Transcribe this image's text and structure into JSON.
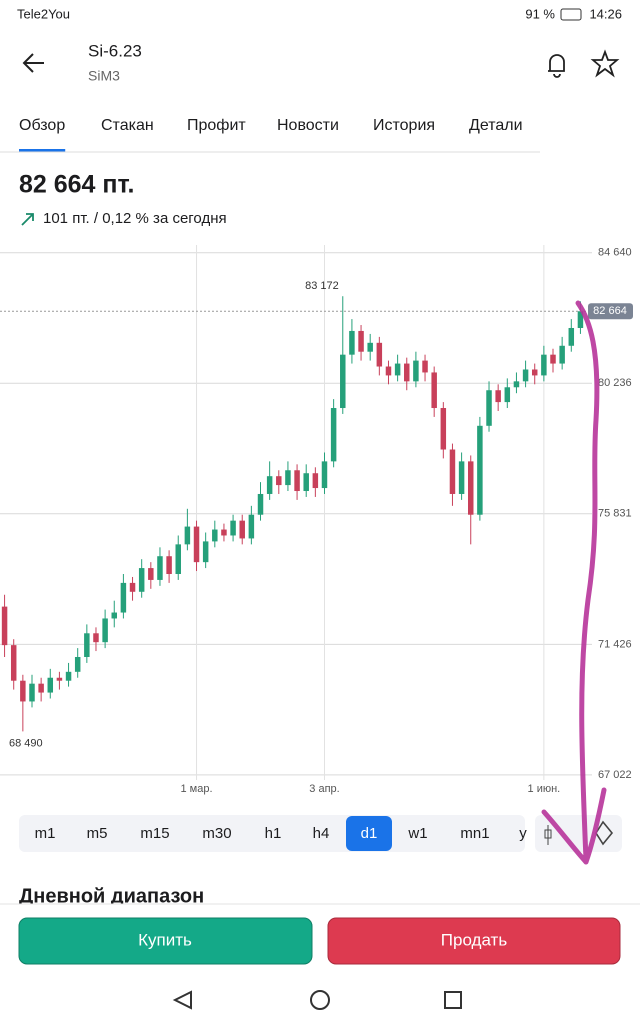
{
  "status_bar": {
    "carrier": "Tele2You",
    "battery": "91 %",
    "time": "14:26"
  },
  "header": {
    "title": "Si-6.23",
    "subtitle": "SiM3"
  },
  "tabs": [
    {
      "label": "Обзор",
      "active": true
    },
    {
      "label": "Стакан",
      "active": false
    },
    {
      "label": "Профит",
      "active": false
    },
    {
      "label": "Новости",
      "active": false
    },
    {
      "label": "История",
      "active": false
    },
    {
      "label": "Детали",
      "active": false
    }
  ],
  "price": {
    "value": "82 664 пт.",
    "change": "101 пт. / 0,12 % за сегодня"
  },
  "chart_data": {
    "type": "candlestick",
    "categories": [
      null,
      null,
      null,
      null,
      null,
      null,
      null,
      null,
      null,
      null,
      null,
      null,
      null,
      null,
      null,
      null,
      null,
      null,
      null,
      null,
      null,
      "1 мар.",
      null,
      null,
      null,
      null,
      null,
      null,
      null,
      null,
      null,
      null,
      null,
      null,
      null,
      "3 апр.",
      null,
      null,
      null,
      null,
      null,
      null,
      null,
      null,
      null,
      null,
      null,
      null,
      null,
      null,
      null,
      null,
      null,
      null,
      null,
      null,
      null,
      null,
      null,
      "1 июн.",
      null,
      null,
      null,
      null
    ],
    "open": [
      72700,
      71400,
      70200,
      69500,
      70100,
      69800,
      70300,
      70200,
      70500,
      71000,
      71800,
      71500,
      72300,
      72500,
      73500,
      73200,
      74000,
      73600,
      74400,
      73800,
      74800,
      75400,
      74200,
      74900,
      75300,
      75100,
      75600,
      75000,
      75800,
      76500,
      77100,
      76800,
      77300,
      76600,
      77200,
      76700,
      77600,
      79400,
      81200,
      82000,
      81300,
      81600,
      80800,
      80500,
      80900,
      80300,
      81000,
      80600,
      79400,
      78000,
      76500,
      77600,
      75800,
      78800,
      80000,
      79600,
      80100,
      80300,
      80700,
      80500,
      81200,
      80900,
      81500,
      82100
    ],
    "high": [
      73100,
      71600,
      70400,
      70400,
      70300,
      70600,
      70500,
      70800,
      71300,
      72100,
      72000,
      72600,
      72900,
      73800,
      73700,
      74300,
      74200,
      74700,
      74600,
      75100,
      76000,
      75600,
      75200,
      75600,
      75500,
      75800,
      75800,
      76100,
      76900,
      77600,
      77300,
      77600,
      77500,
      77500,
      77400,
      77900,
      79700,
      83172,
      82400,
      82200,
      81900,
      81800,
      81000,
      81200,
      81100,
      81300,
      81200,
      80800,
      79600,
      78200,
      77900,
      77800,
      79100,
      80300,
      80200,
      80400,
      80600,
      81000,
      80900,
      81500,
      81400,
      81800,
      82400,
      83000
    ],
    "low": [
      71000,
      69900,
      68490,
      69300,
      69500,
      69600,
      69900,
      70000,
      70300,
      70800,
      71200,
      71300,
      72000,
      72300,
      72900,
      73000,
      73300,
      73400,
      73500,
      73600,
      74600,
      73900,
      74000,
      74700,
      74900,
      74900,
      74800,
      74800,
      75600,
      76300,
      76500,
      76600,
      76300,
      76400,
      76400,
      76500,
      77400,
      79200,
      80900,
      81000,
      81000,
      80500,
      80200,
      80300,
      80000,
      80100,
      80300,
      79100,
      77700,
      76100,
      76300,
      74800,
      75600,
      78600,
      79300,
      79400,
      79900,
      80100,
      80200,
      80300,
      80600,
      80700,
      81300,
      81900
    ],
    "close": [
      71400,
      70200,
      69500,
      70100,
      69800,
      70300,
      70200,
      70500,
      71000,
      71800,
      71500,
      72300,
      72500,
      73500,
      73200,
      74000,
      73600,
      74400,
      73800,
      74800,
      75400,
      74200,
      74900,
      75300,
      75100,
      75600,
      75000,
      75800,
      76500,
      77100,
      76800,
      77300,
      76600,
      77200,
      76700,
      77600,
      79400,
      81200,
      82000,
      81300,
      81600,
      80800,
      80500,
      80900,
      80300,
      81000,
      80600,
      79400,
      78000,
      76500,
      77600,
      75800,
      78800,
      80000,
      79600,
      80100,
      80300,
      80700,
      80500,
      81200,
      80900,
      81500,
      82100,
      82664
    ],
    "up_color": "#25a07a",
    "down_color": "#c8405a",
    "ylim": [
      66850,
      84900
    ],
    "yticks": [
      {
        "value": 67022,
        "label": "67 022"
      },
      {
        "value": 71426,
        "label": "71 426"
      },
      {
        "value": 75831,
        "label": "75 831"
      },
      {
        "value": 80236,
        "label": "80 236"
      },
      {
        "value": 84640,
        "label": "84 640"
      }
    ],
    "grid": true,
    "high_label": {
      "value": 83172,
      "label": "83 172"
    },
    "low_label": {
      "value": 68490,
      "label": "68 490"
    },
    "last_price": {
      "value": 82664,
      "label": "82 664"
    }
  },
  "timeframes": [
    "m1",
    "m5",
    "m15",
    "m30",
    "h1",
    "h4",
    "d1",
    "w1",
    "mn1",
    "y"
  ],
  "active_timeframe": "d1",
  "section_title": "Дневной диапазон",
  "buttons": {
    "buy": "Купить",
    "sell": "Продать"
  }
}
